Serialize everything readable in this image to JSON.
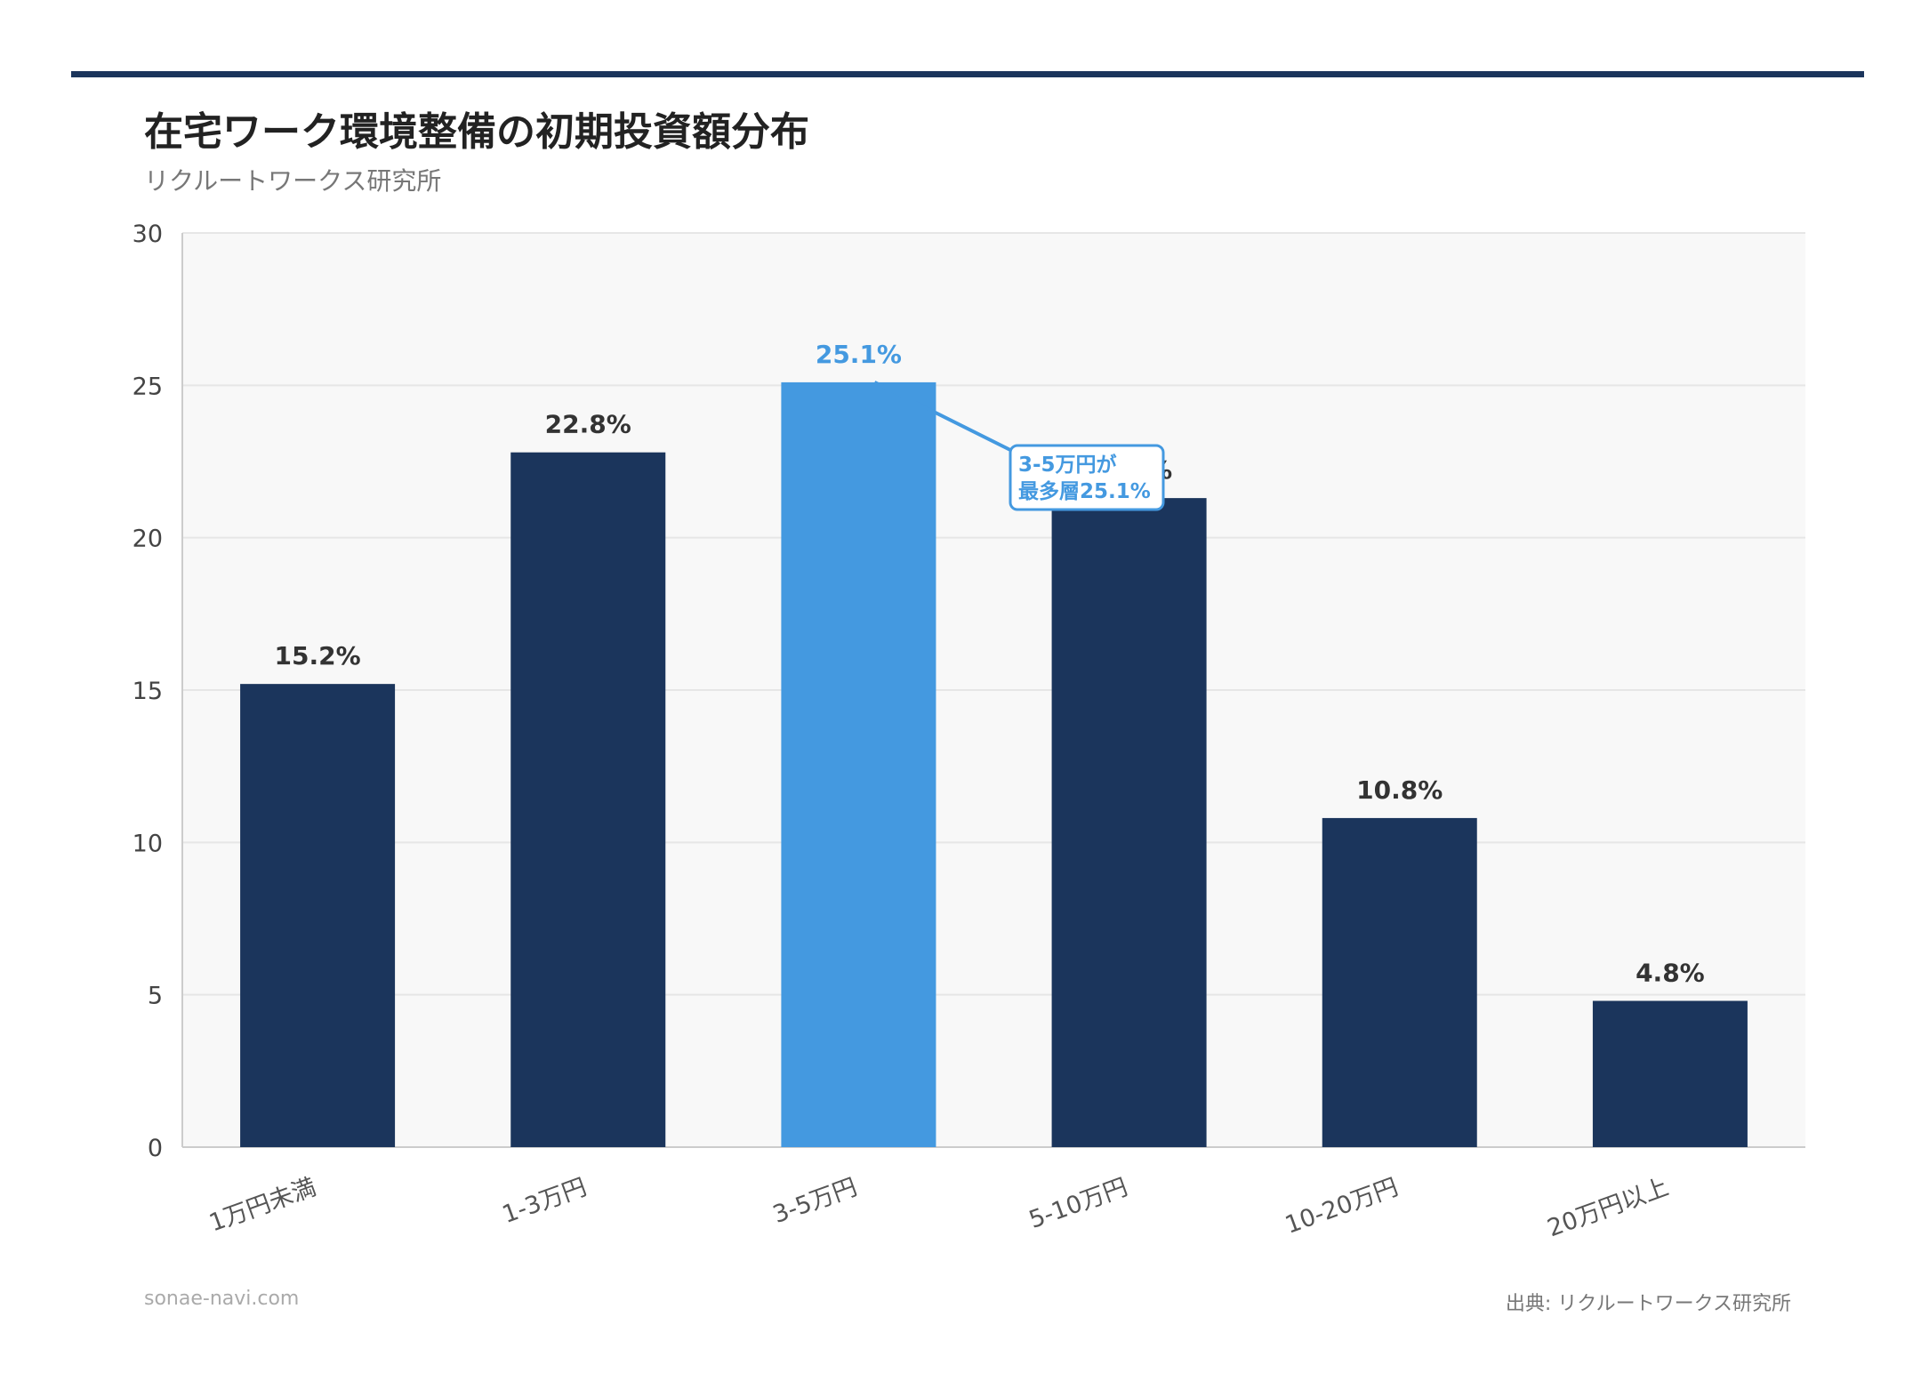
{
  "header": {
    "title": "在宅ワーク環境整備の初期投資額分布",
    "subtitle": "リクルートワークス研究所"
  },
  "footer": {
    "site": "sonae-navi.com",
    "source": "出典: リクルートワークス研究所"
  },
  "colors": {
    "bar": "#1b355c",
    "highlight": "#4499e0",
    "plot_background": "#f8f8f8",
    "grid": "#e6e6e6",
    "rule": "#1b355c"
  },
  "chart_data": {
    "type": "bar",
    "categories": [
      "1万円未満",
      "1-3万円",
      "3-5万円",
      "5-10万円",
      "10-20万円",
      "20万円以上"
    ],
    "values": [
      15.2,
      22.8,
      25.1,
      21.3,
      10.8,
      4.8
    ],
    "value_labels": [
      "15.2%",
      "22.8%",
      "25.1%",
      "21.3%",
      "10.8%",
      "4.8%"
    ],
    "highlight_index": 2,
    "ylim": [
      0,
      30
    ],
    "yticks": [
      "0",
      "5",
      "10",
      "15",
      "20",
      "25",
      "30"
    ],
    "grid": true,
    "annotation": {
      "target_index": 2,
      "lines": [
        "3-5万円が",
        "最多層25.1%"
      ]
    }
  }
}
